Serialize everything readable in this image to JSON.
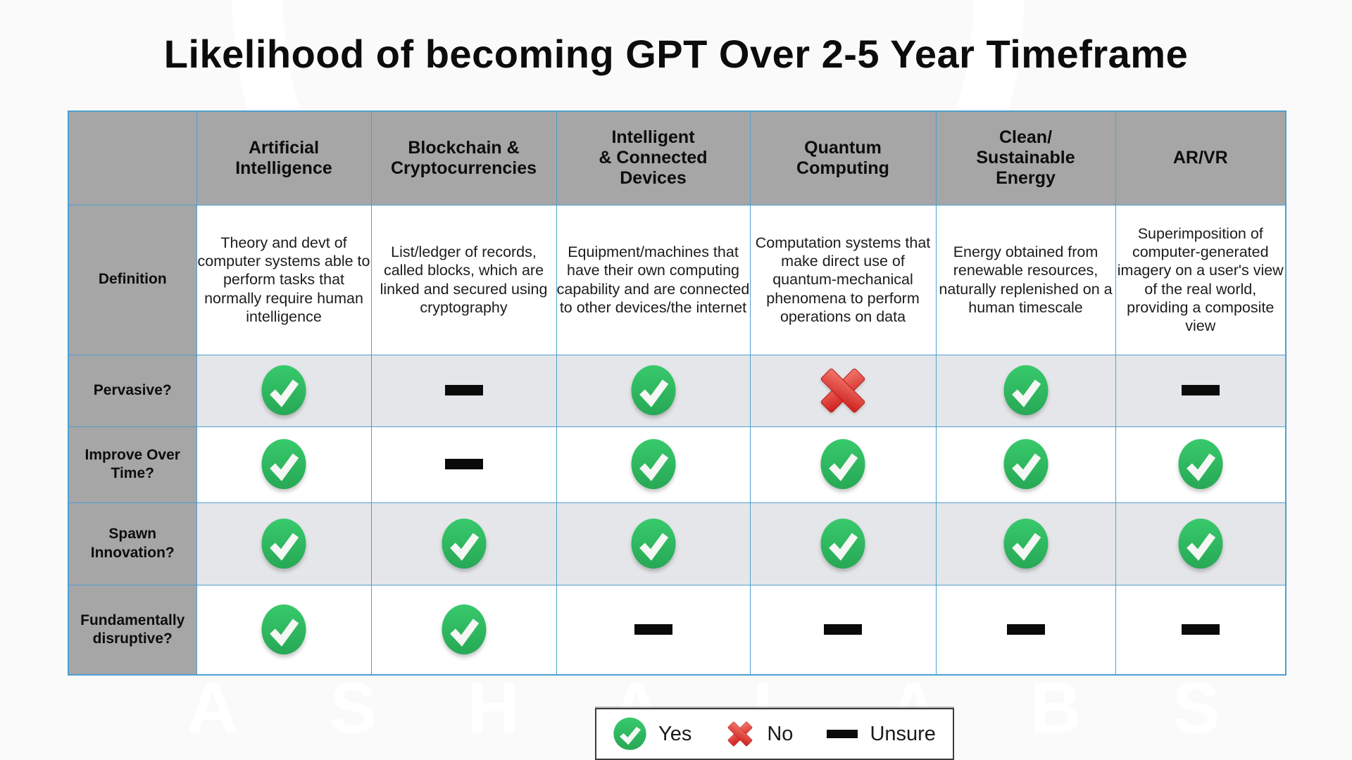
{
  "page": {
    "title": "Likelihood of becoming GPT Over 2-5 Year Timeframe"
  },
  "watermark": {
    "letters": [
      "A",
      "S",
      "H",
      "A",
      "L",
      "A",
      "B",
      "S"
    ]
  },
  "colors": {
    "header_grey": "#a6a6a6",
    "row_alt": "#e5e6e9",
    "border_blue": "#4f9fd0",
    "yes_green": "#38c96c",
    "yes_green_dark": "#27a855",
    "no_red": "#cd1f1c",
    "no_red_light": "#f3796c",
    "unsure_black": "#0a0a0a"
  },
  "table": {
    "columns": [
      "Artificial\nIntelligence",
      "Blockchain &\nCryptocurrencies",
      "Intelligent\n& Connected\nDevices",
      "Quantum\nComputing",
      "Clean/\nSustainable\nEnergy",
      "AR/VR"
    ],
    "rows": [
      {
        "label": "Definition",
        "type": "text",
        "cells": [
          "Theory and devt of computer systems able to perform tasks that normally require human intelligence",
          "List/ledger of records, called blocks, which are linked and secured using cryptography",
          "Equipment/machines that have their own computing capability and are connected to other devices/the internet",
          "Computation systems that make direct use of quantum-mechanical phenomena to perform operations on data",
          "Energy obtained from renewable resources, naturally replenished on a human timescale",
          "Superimposition of computer-generated imagery on a user's view of the real world, providing a composite view"
        ]
      },
      {
        "label": "Pervasive?",
        "type": "icon",
        "cells": [
          "yes",
          "unsure",
          "yes",
          "no",
          "yes",
          "unsure"
        ]
      },
      {
        "label": "Improve Over\nTime?",
        "type": "icon",
        "cells": [
          "yes",
          "unsure",
          "yes",
          "yes",
          "yes",
          "yes"
        ]
      },
      {
        "label": "Spawn\nInnovation?",
        "type": "icon",
        "cells": [
          "yes",
          "yes",
          "yes",
          "yes",
          "yes",
          "yes"
        ]
      },
      {
        "label": "Fundamentally\ndisruptive?",
        "type": "icon",
        "cells": [
          "yes",
          "yes",
          "unsure",
          "unsure",
          "unsure",
          "unsure"
        ]
      }
    ]
  },
  "legend": {
    "items": [
      {
        "icon": "yes",
        "label": "Yes"
      },
      {
        "icon": "no",
        "label": "No"
      },
      {
        "icon": "unsure",
        "label": "Unsure"
      }
    ]
  }
}
